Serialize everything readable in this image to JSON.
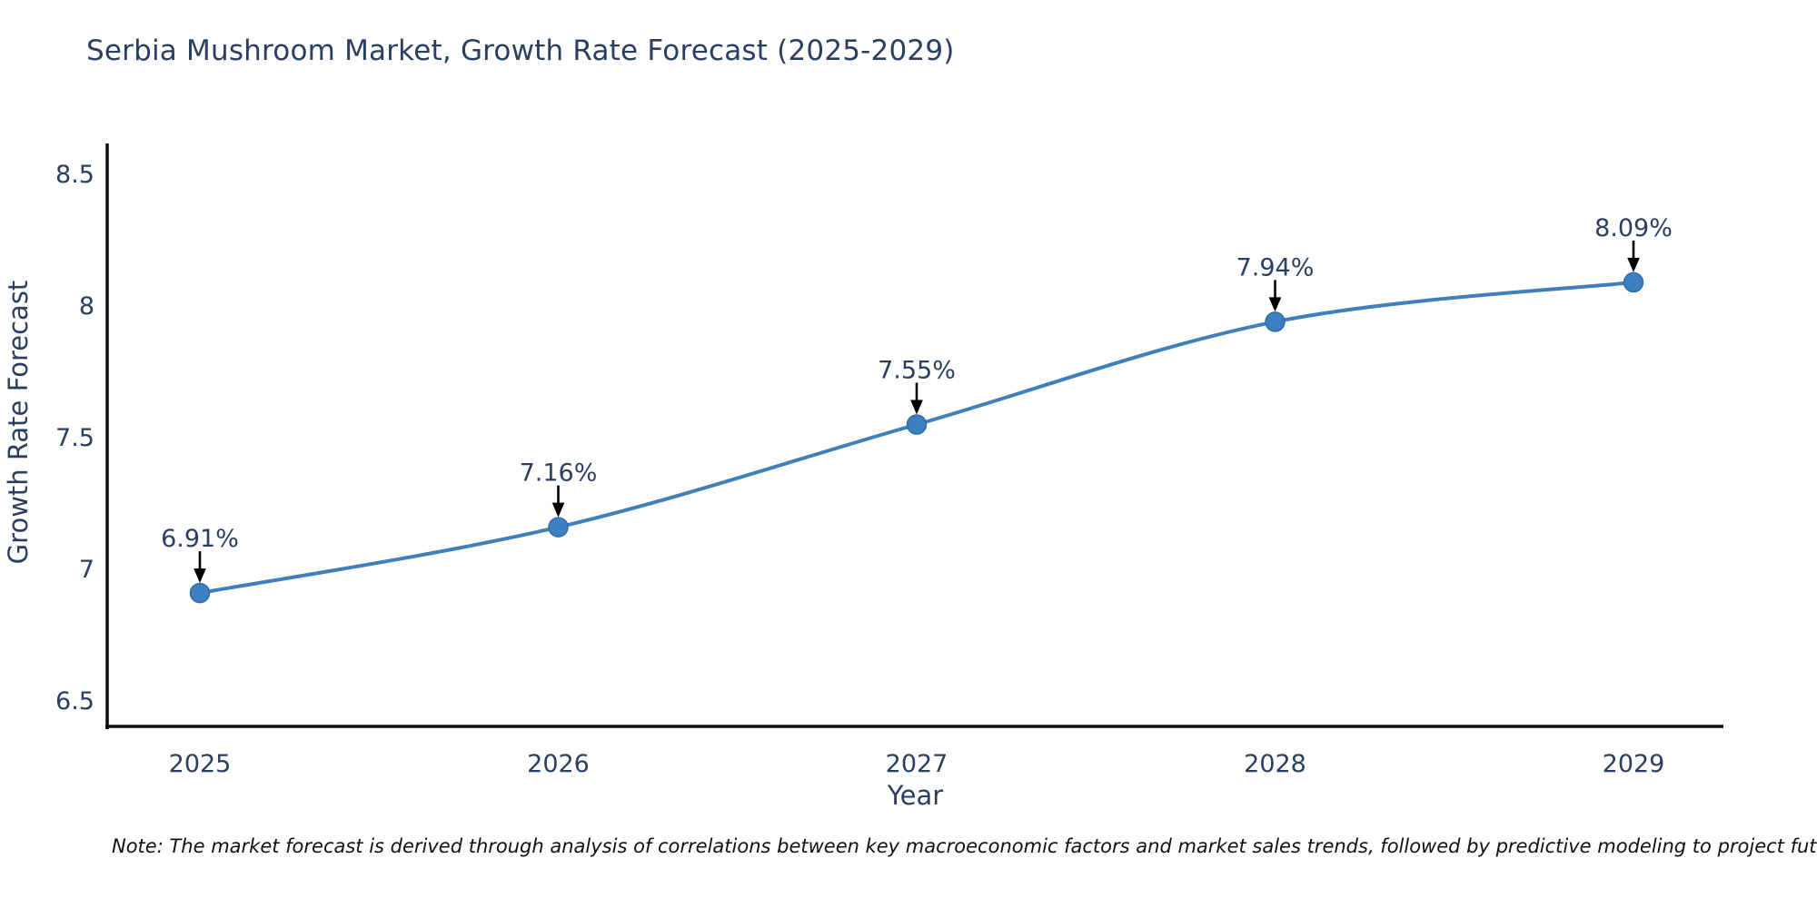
{
  "title": "Serbia Mushroom Market, Growth Rate Forecast (2025-2029)",
  "note": "Note: The market forecast is derived through analysis of correlations between key macroeconomic factors and market sales trends, followed by predictive modeling to project future sales",
  "chart_data": {
    "type": "line",
    "title": "Serbia Mushroom Market, Growth Rate Forecast (2025-2029)",
    "xlabel": "Year",
    "ylabel": "Growth Rate Forecast",
    "categories": [
      "2025",
      "2026",
      "2027",
      "2028",
      "2029"
    ],
    "series": [
      {
        "name": "Growth Rate Forecast",
        "values": [
          6.91,
          7.16,
          7.55,
          7.94,
          8.09
        ]
      }
    ],
    "point_labels": [
      "6.91%",
      "7.16%",
      "7.55%",
      "7.94%",
      "8.09%"
    ],
    "yticks": [
      6.5,
      7,
      7.5,
      8,
      8.5
    ],
    "ytick_labels": [
      "6.5",
      "7",
      "7.5",
      "8",
      "8.5"
    ],
    "ylim": [
      6.4,
      8.62
    ],
    "grid": false,
    "legend_position": "none",
    "marker_style": "circle",
    "annotation_arrows": true
  },
  "colors": {
    "line": "#3f7fba",
    "marker_fill": "#3d80bf",
    "marker_edge": "#2f6ba6",
    "axis": "#0d0d0d",
    "title_text": "#2a3f5f",
    "tick_text": "#2a3f5f",
    "annotation_text": "#2a3f5f",
    "arrow": "#000000",
    "note_text": "#111111",
    "background": "#ffffff"
  }
}
